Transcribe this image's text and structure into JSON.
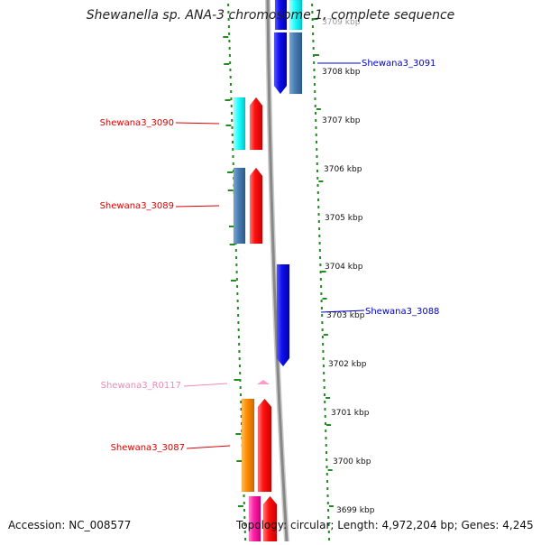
{
  "title": "Shewanella sp. ANA-3 chromosome 1, complete sequence",
  "footer": {
    "accession": "Accession: NC_008577",
    "topology": "Topology: circular; Length: 4,972,204 bp; Genes: 4,245"
  },
  "axis_unit": "kbp",
  "ticks": [
    3709,
    3708,
    3707,
    3706,
    3705,
    3704,
    3703,
    3702,
    3701,
    3700,
    3699
  ],
  "ticks_display": [
    "3709 kbp",
    "3708 kbp",
    "3707 kbp",
    "3706 kbp",
    "3705 kbp",
    "3704 kbp",
    "3703 kbp",
    "3702 kbp",
    "3701 kbp",
    "3700 kbp",
    "3699 kbp"
  ],
  "genes": [
    {
      "label": "Shewana3_3091",
      "color": "#0000cc"
    },
    {
      "label": "Shewana3_3090",
      "color": "#dd0000"
    },
    {
      "label": "Shewana3_3089",
      "color": "#dd0000"
    },
    {
      "label": "Shewana3_3088",
      "color": "#0000cc"
    },
    {
      "label": "Shewana3_R0117",
      "color": "#ee88bb"
    },
    {
      "label": "Shewana3_3087",
      "color": "#dd0000"
    }
  ],
  "colors": {
    "forward_strand": "#ff1111",
    "reverse_strand": "#1010ee",
    "cog_cyan": "#22ffff",
    "cog_steelblue": "#4a7fb5",
    "cog_orange": "#ff8c00",
    "cog_magenta": "#ff22aa",
    "rna": "#ff99cc",
    "backbone": "#888888",
    "gc_dots": "#228b22"
  }
}
